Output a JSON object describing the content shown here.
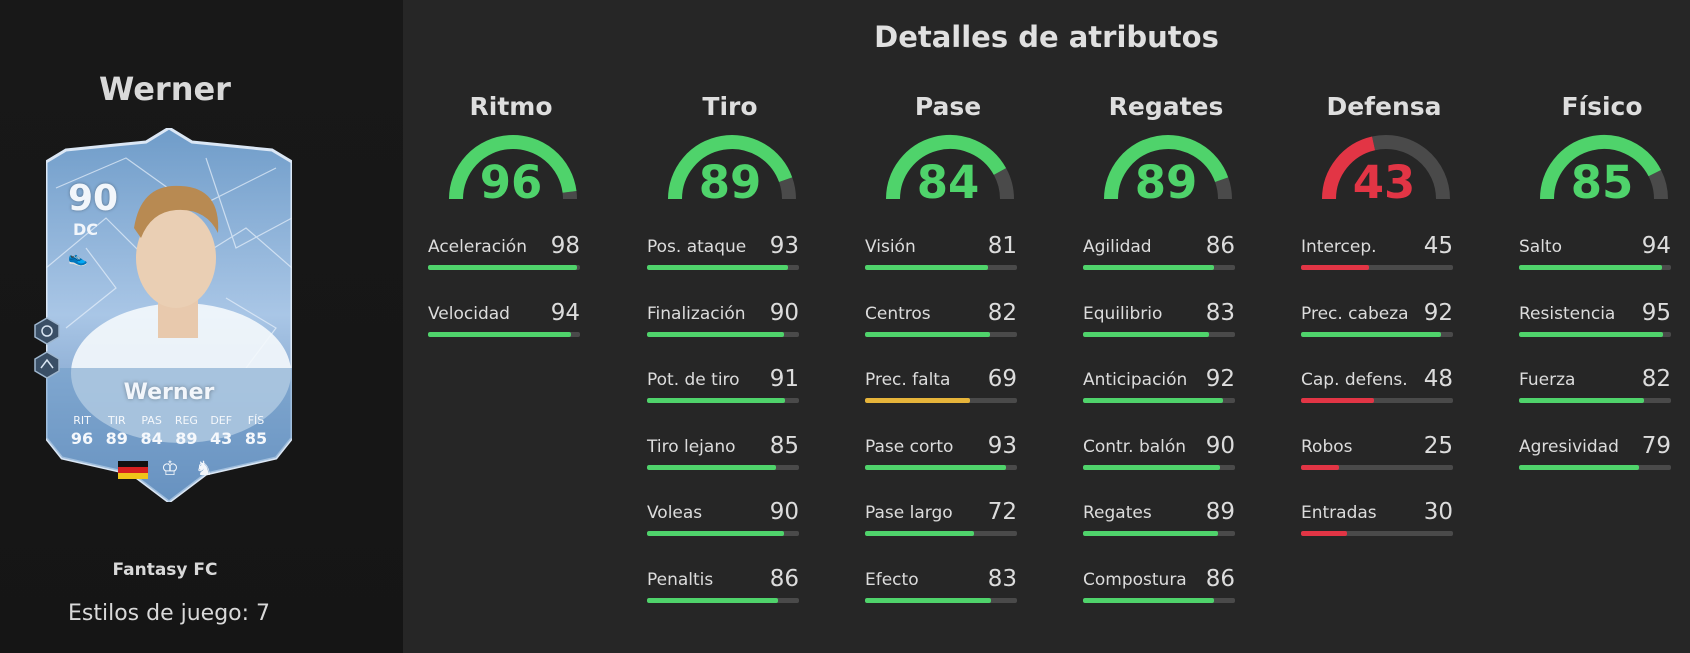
{
  "player": {
    "name": "Werner",
    "edition": "Fantasy FC",
    "playstyles_text": "Estilos de juego: 7",
    "card": {
      "rating": "90",
      "position": "DC",
      "card_name": "Werner",
      "boot_icon": "boot-icon",
      "stats": [
        {
          "label": "RIT",
          "value": "96"
        },
        {
          "label": "TIR",
          "value": "89"
        },
        {
          "label": "PAS",
          "value": "84"
        },
        {
          "label": "REG",
          "value": "89"
        },
        {
          "label": "DEF",
          "value": "43"
        },
        {
          "label": "FÍS",
          "value": "85"
        }
      ],
      "nation_icon": "germany-flag-icon",
      "league_icon": "premier-league-icon",
      "club_icon": "tottenham-crest-icon"
    }
  },
  "title": "Detalles de atributos",
  "colors": {
    "green": "#4fd36b",
    "red": "#e23545",
    "yellow": "#e6b43a",
    "track": "#4a4a4a"
  },
  "categories": [
    {
      "name": "Ritmo",
      "value": 96,
      "color": "#4fd36b",
      "attributes": [
        {
          "label": "Aceleración",
          "value": 98,
          "color": "#4fd36b"
        },
        {
          "label": "Velocidad",
          "value": 94,
          "color": "#4fd36b"
        }
      ]
    },
    {
      "name": "Tiro",
      "value": 89,
      "color": "#4fd36b",
      "attributes": [
        {
          "label": "Pos. ataque",
          "value": 93,
          "color": "#4fd36b"
        },
        {
          "label": "Finalización",
          "value": 90,
          "color": "#4fd36b"
        },
        {
          "label": "Pot. de tiro",
          "value": 91,
          "color": "#4fd36b"
        },
        {
          "label": "Tiro lejano",
          "value": 85,
          "color": "#4fd36b"
        },
        {
          "label": "Voleas",
          "value": 90,
          "color": "#4fd36b"
        },
        {
          "label": "Penaltis",
          "value": 86,
          "color": "#4fd36b"
        }
      ]
    },
    {
      "name": "Pase",
      "value": 84,
      "color": "#4fd36b",
      "attributes": [
        {
          "label": "Visión",
          "value": 81,
          "color": "#4fd36b"
        },
        {
          "label": "Centros",
          "value": 82,
          "color": "#4fd36b"
        },
        {
          "label": "Prec. falta",
          "value": 69,
          "color": "#e6b43a"
        },
        {
          "label": "Pase corto",
          "value": 93,
          "color": "#4fd36b"
        },
        {
          "label": "Pase largo",
          "value": 72,
          "color": "#4fd36b"
        },
        {
          "label": "Efecto",
          "value": 83,
          "color": "#4fd36b"
        }
      ]
    },
    {
      "name": "Regates",
      "value": 89,
      "color": "#4fd36b",
      "attributes": [
        {
          "label": "Agilidad",
          "value": 86,
          "color": "#4fd36b"
        },
        {
          "label": "Equilibrio",
          "value": 83,
          "color": "#4fd36b"
        },
        {
          "label": "Anticipación",
          "value": 92,
          "color": "#4fd36b"
        },
        {
          "label": "Contr. balón",
          "value": 90,
          "color": "#4fd36b"
        },
        {
          "label": "Regates",
          "value": 89,
          "color": "#4fd36b"
        },
        {
          "label": "Compostura",
          "value": 86,
          "color": "#4fd36b"
        }
      ]
    },
    {
      "name": "Defensa",
      "value": 43,
      "color": "#e23545",
      "attributes": [
        {
          "label": "Intercep.",
          "value": 45,
          "color": "#e23545"
        },
        {
          "label": "Prec. cabeza",
          "value": 92,
          "color": "#4fd36b"
        },
        {
          "label": "Cap. defens.",
          "value": 48,
          "color": "#e23545"
        },
        {
          "label": "Robos",
          "value": 25,
          "color": "#e23545"
        },
        {
          "label": "Entradas",
          "value": 30,
          "color": "#e23545"
        }
      ]
    },
    {
      "name": "Físico",
      "value": 85,
      "color": "#4fd36b",
      "attributes": [
        {
          "label": "Salto",
          "value": 94,
          "color": "#4fd36b"
        },
        {
          "label": "Resistencia",
          "value": 95,
          "color": "#4fd36b"
        },
        {
          "label": "Fuerza",
          "value": 82,
          "color": "#4fd36b"
        },
        {
          "label": "Agresividad",
          "value": 79,
          "color": "#4fd36b"
        }
      ]
    }
  ]
}
